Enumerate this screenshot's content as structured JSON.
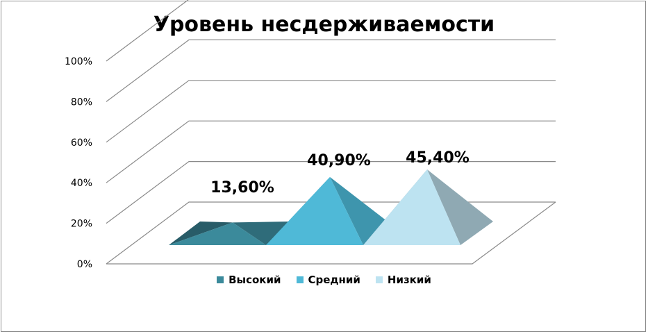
{
  "chart_data": {
    "type": "bar",
    "title": "Уровень несдерживаемости",
    "categories": [
      "Высокий",
      "Средний",
      "Низкий"
    ],
    "values": [
      13.6,
      40.9,
      45.4
    ],
    "data_labels": [
      "13,60%",
      "40,90%",
      "45,40%"
    ],
    "y_ticks": [
      "0%",
      "20%",
      "40%",
      "60%",
      "80%",
      "100%"
    ],
    "ylim": [
      0,
      100
    ],
    "grid": true,
    "legend": "bottom",
    "colors": {
      "Высокий": {
        "front": "#3b8a9b",
        "side": "#2f6c7a",
        "dark": "#285c68"
      },
      "Средний": {
        "front": "#4fb9d7",
        "side": "#3e95ad"
      },
      "Низкий": {
        "front": "#bde3f1",
        "side": "#8fa9b3"
      }
    }
  }
}
